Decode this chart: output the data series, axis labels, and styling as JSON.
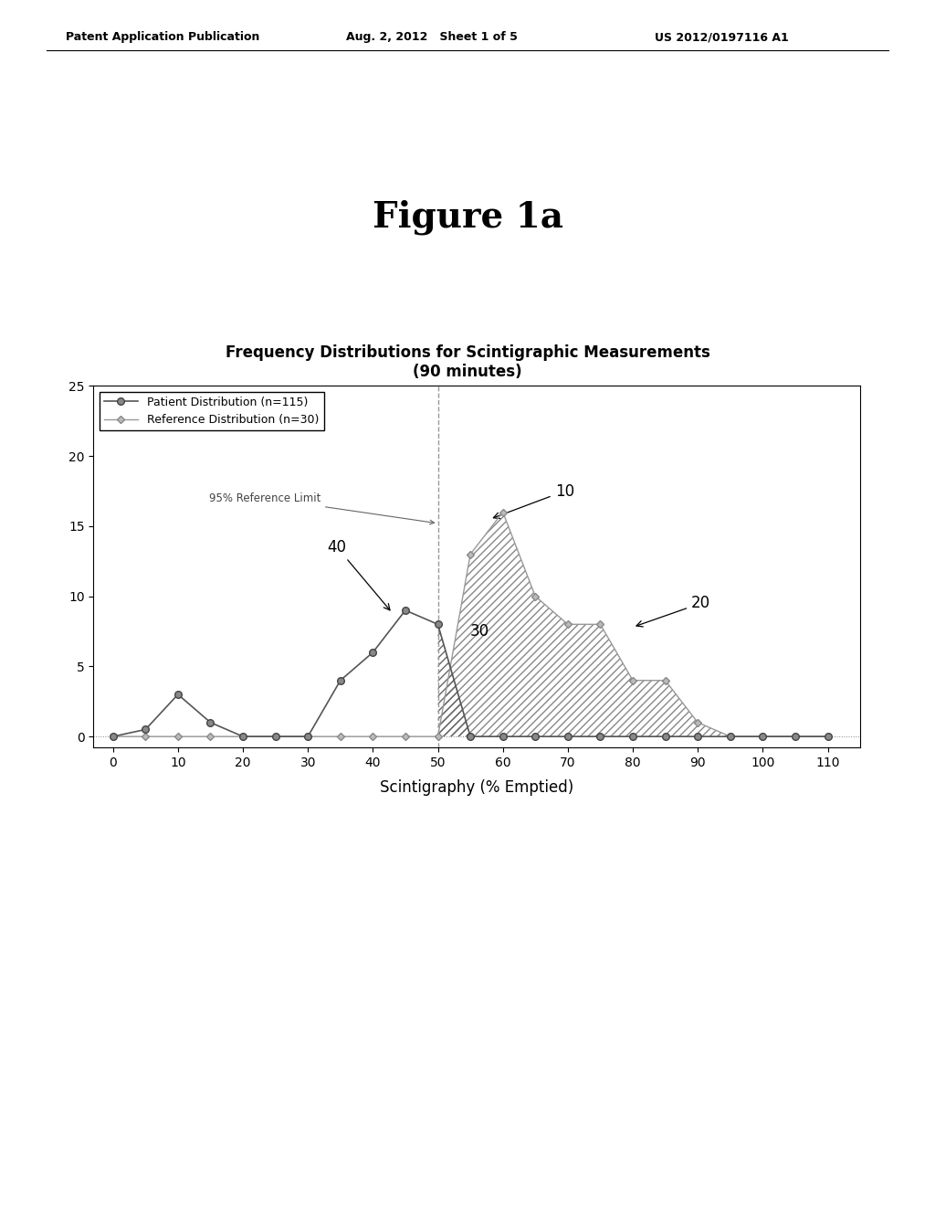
{
  "figure_title": "Figure 1a",
  "chart_title": "Frequency Distributions for Scintigraphic Measurements\n(90 minutes)",
  "xlabel": "Scintigraphy (% Emptied)",
  "xlim": [
    -3,
    115
  ],
  "ylim": [
    -0.8,
    25
  ],
  "xticks": [
    0,
    10,
    20,
    30,
    40,
    50,
    60,
    70,
    80,
    90,
    100,
    110
  ],
  "yticks": [
    0,
    5,
    10,
    15,
    20,
    25
  ],
  "header_left": "Patent Application Publication",
  "header_center": "Aug. 2, 2012   Sheet 1 of 5",
  "header_right": "US 2012/0197116 A1",
  "patient_x": [
    0,
    5,
    10,
    15,
    20,
    25,
    30,
    35,
    40,
    45,
    50,
    55,
    60,
    65,
    70,
    75,
    80,
    85,
    90,
    95,
    100,
    105,
    110
  ],
  "patient_y": [
    0,
    0.5,
    3,
    1,
    0,
    0,
    0,
    4,
    6,
    9,
    8,
    0,
    0,
    0,
    0,
    0,
    0,
    0,
    0,
    0,
    0,
    0,
    0
  ],
  "reference_x": [
    0,
    5,
    10,
    15,
    20,
    25,
    30,
    35,
    40,
    45,
    50,
    55,
    60,
    65,
    70,
    75,
    80,
    85,
    90,
    95,
    100,
    105,
    110
  ],
  "reference_y": [
    0,
    0,
    0,
    0,
    0,
    0,
    0,
    0,
    0,
    0,
    0,
    13,
    16,
    10,
    8,
    8,
    4,
    4,
    1,
    0,
    0,
    0,
    0
  ],
  "ref_limit_x": 50,
  "patient_color": "#555555",
  "reference_color": "#999999",
  "legend_label_patient": "Patient Distribution (n=115)",
  "legend_label_reference": "Reference Distribution (n=30)",
  "ref_limit_label": "95% Reference Limit"
}
